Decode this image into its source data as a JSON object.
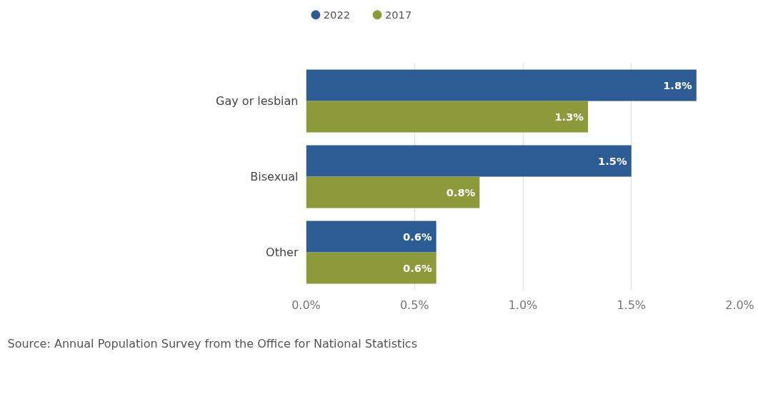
{
  "chart_data": {
    "type": "bar",
    "orientation": "horizontal",
    "categories": [
      "Gay or lesbian",
      "Bisexual",
      "Other"
    ],
    "series": [
      {
        "name": "2022",
        "color": "#2d5b94",
        "values": [
          1.8,
          1.5,
          0.6
        ],
        "value_labels": [
          "1.8%",
          "1.5%",
          "0.6%"
        ]
      },
      {
        "name": "2017",
        "color": "#8c9a3c",
        "values": [
          1.3,
          0.8,
          0.6
        ],
        "value_labels": [
          "1.3%",
          "0.8%",
          "0.6%"
        ]
      }
    ],
    "xlim": [
      0,
      2.0
    ],
    "xticks": [
      {
        "value": 0,
        "label": "0.0%"
      },
      {
        "value": 0.5,
        "label": "0.5%"
      },
      {
        "value": 1.0,
        "label": "1.0%"
      },
      {
        "value": 1.5,
        "label": "1.5%"
      },
      {
        "value": 2.0,
        "label": "2.0%"
      }
    ],
    "grid": "x",
    "legend": "top left",
    "annotations": [
      "Source: Annual Population Survey from the Office for National Statistics"
    ]
  }
}
